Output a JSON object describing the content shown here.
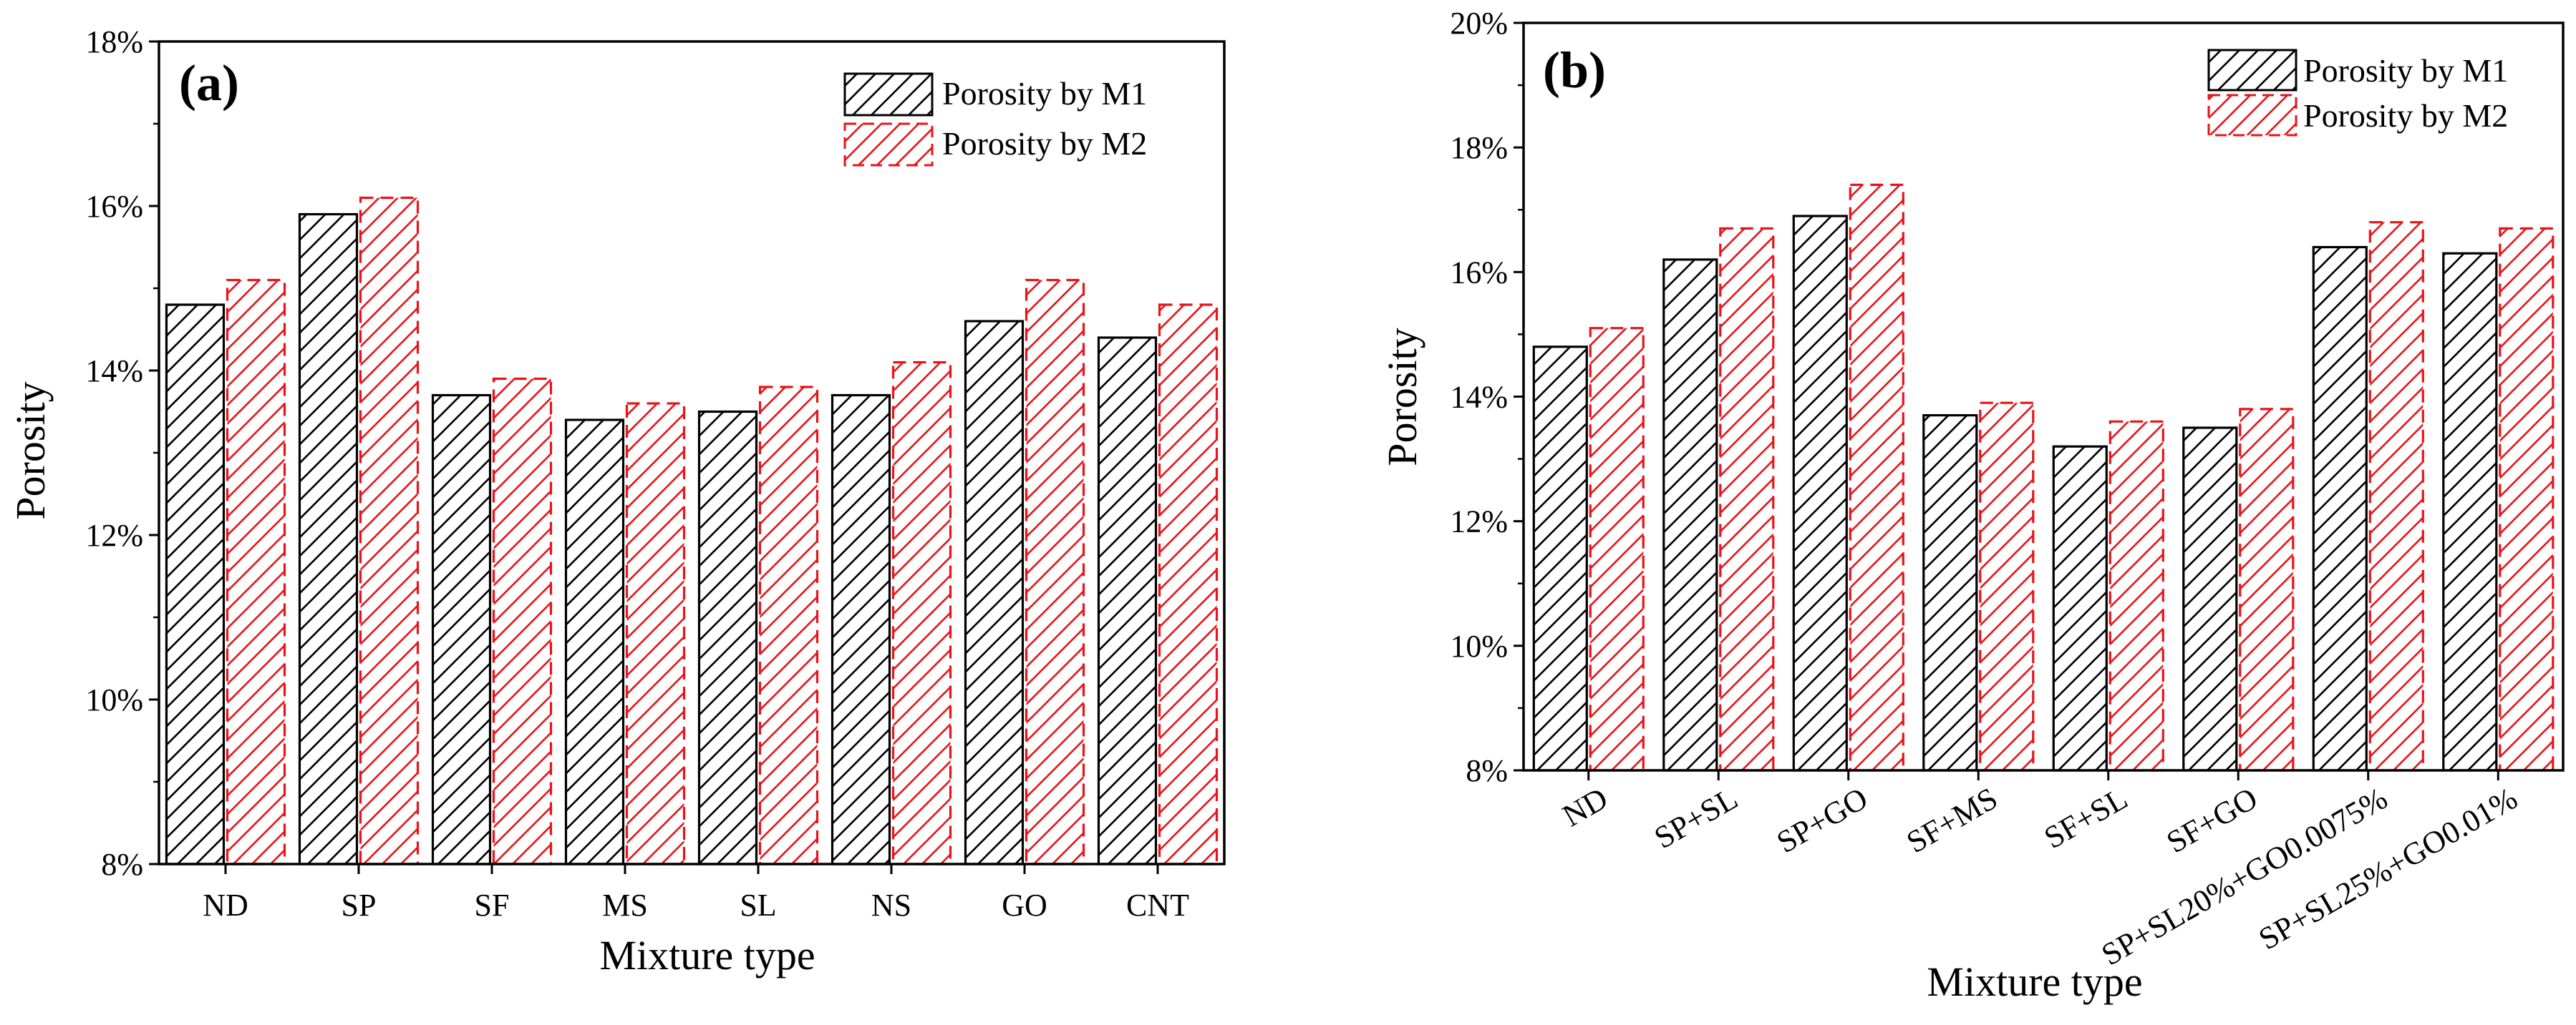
{
  "chart_data": [
    {
      "panel": "(a)",
      "type": "bar",
      "xlabel": "Mixture type",
      "ylabel": "Porosity",
      "ylim": [
        0.08,
        0.18
      ],
      "yticks": [
        "8%",
        "10%",
        "12%",
        "14%",
        "16%",
        "18%"
      ],
      "ytick_values": [
        0.08,
        0.1,
        0.12,
        0.14,
        0.16,
        0.18
      ],
      "categories": [
        "ND",
        "SP",
        "SF",
        "MS",
        "SL",
        "NS",
        "GO",
        "CNT"
      ],
      "series": [
        {
          "name": "Porosity by M1",
          "color": "#000000",
          "values": [
            0.148,
            0.159,
            0.137,
            0.134,
            0.135,
            0.137,
            0.146,
            0.144
          ]
        },
        {
          "name": "Porosity by M2",
          "color": "#e8141a",
          "values": [
            0.151,
            0.161,
            0.139,
            0.136,
            0.138,
            0.141,
            0.151,
            0.148
          ]
        }
      ],
      "legend": "top-right",
      "grid": false
    },
    {
      "panel": "(b)",
      "type": "bar",
      "xlabel": "Mixture type",
      "ylabel": "Porosity",
      "ylim": [
        0.08,
        0.2
      ],
      "yticks": [
        "8%",
        "10%",
        "12%",
        "14%",
        "16%",
        "18%",
        "20%"
      ],
      "ytick_values": [
        0.08,
        0.1,
        0.12,
        0.14,
        0.16,
        0.18,
        0.2
      ],
      "categories": [
        "ND",
        "SP+SL",
        "SP+GO",
        "SF+MS",
        "SF+SL",
        "SF+GO",
        "SP+SL20%+GO0.0075%",
        "SP+SL25%+GO0.01%"
      ],
      "series": [
        {
          "name": "Porosity by M1",
          "color": "#000000",
          "values": [
            0.148,
            0.162,
            0.169,
            0.137,
            0.132,
            0.135,
            0.164,
            0.163
          ]
        },
        {
          "name": "Porosity by M2",
          "color": "#e8141a",
          "values": [
            0.151,
            0.167,
            0.174,
            0.139,
            0.136,
            0.138,
            0.168,
            0.167
          ]
        }
      ],
      "legend": "top-right",
      "grid": false
    }
  ]
}
